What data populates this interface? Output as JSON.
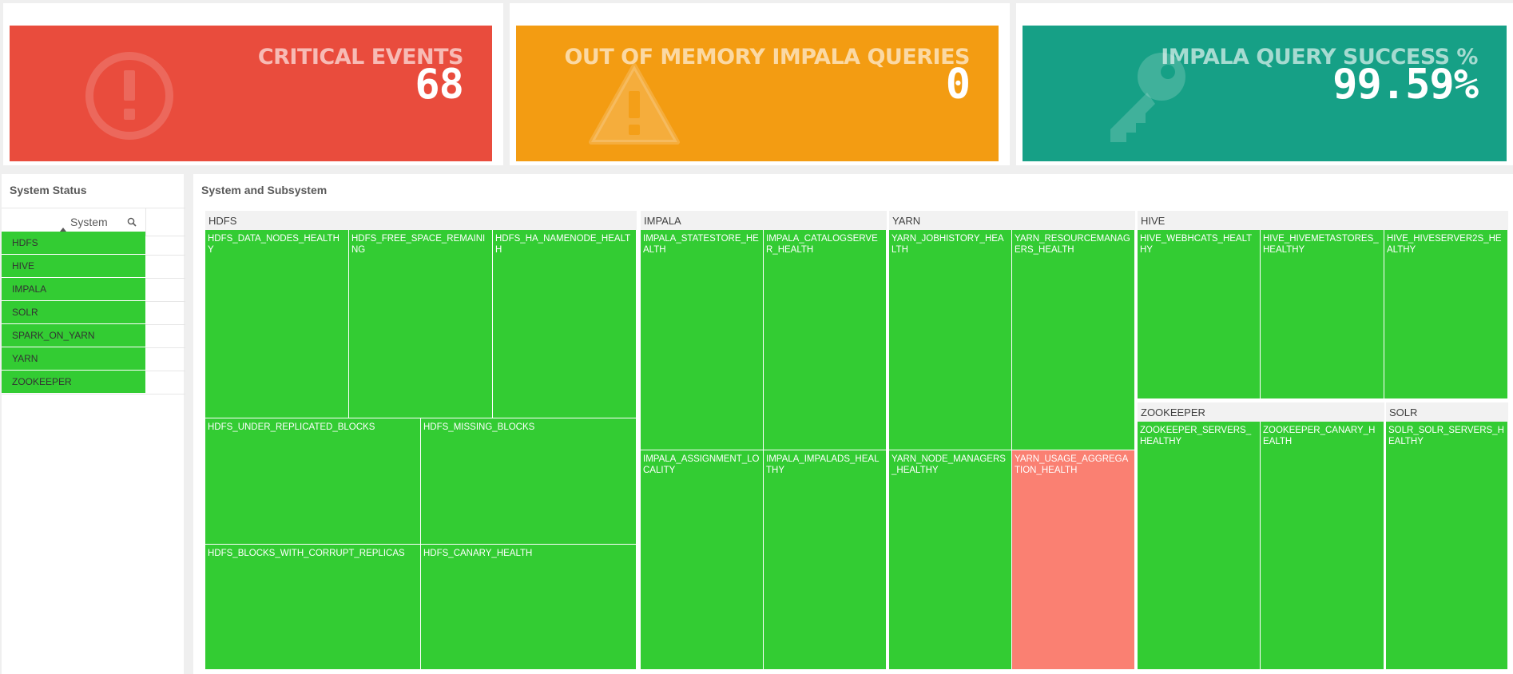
{
  "kpis": {
    "critical": {
      "title": "CRITICAL EVENTS",
      "value": "68",
      "color": "#e94c3d",
      "icon": "alert-circle-icon"
    },
    "oom": {
      "title": "OUT OF MEMORY IMPALA QUERIES",
      "value": "0",
      "color": "#f39c12",
      "icon": "warning-triangle-icon"
    },
    "success": {
      "title": "IMPALA QUERY SUCCESS %",
      "value": "99.59%",
      "color": "#16a086",
      "icon": "key-icon"
    }
  },
  "system_status": {
    "title": "System Status",
    "column_header": "System",
    "rows": [
      "HDFS",
      "HIVE",
      "IMPALA",
      "SOLR",
      "SPARK_ON_YARN",
      "YARN",
      "ZOOKEEPER"
    ],
    "healthy_color": "#33cc33"
  },
  "treemap": {
    "title": "System and Subsystem",
    "healthy_color": "#33cc33",
    "unhealthy_color": "#fa8072",
    "groups": {
      "hdfs": {
        "label": "HDFS",
        "tiles": [
          "HDFS_DATA_NODES_HEALTHY",
          "HDFS_FREE_SPACE_REMAINING",
          "HDFS_HA_NAMENODE_HEALTH",
          "HDFS_UNDER_REPLICATED_BLOCKS",
          "HDFS_MISSING_BLOCKS",
          "HDFS_BLOCKS_WITH_CORRUPT_REPLICAS",
          "HDFS_CANARY_HEALTH"
        ]
      },
      "impala": {
        "label": "IMPALA",
        "tiles": [
          "IMPALA_STATESTORE_HEALTH",
          "IMPALA_CATALOGSERVER_HEALTH",
          "IMPALA_ASSIGNMENT_LOCALITY",
          "IMPALA_IMPALADS_HEALTHY"
        ]
      },
      "yarn": {
        "label": "YARN",
        "tiles": [
          "YARN_JOBHISTORY_HEALTH",
          "YARN_RESOURCEMANAGERS_HEALTH",
          "YARN_NODE_MANAGERS_HEALTHY",
          "YARN_USAGE_AGGREGATION_HEALTH"
        ]
      },
      "hive": {
        "label": "HIVE",
        "tiles": [
          "HIVE_WEBHCATS_HEALTHY",
          "HIVE_HIVEMETASTORES_HEALTHY",
          "HIVE_HIVESERVER2S_HEALTHY"
        ]
      },
      "zookeeper": {
        "label": "ZOOKEEPER",
        "tiles": [
          "ZOOKEEPER_SERVERS_HEALTHY",
          "ZOOKEEPER_CANARY_HEALTH"
        ]
      },
      "solr": {
        "label": "SOLR",
        "tiles": [
          "SOLR_SOLR_SERVERS_HEALTHY"
        ]
      }
    }
  }
}
